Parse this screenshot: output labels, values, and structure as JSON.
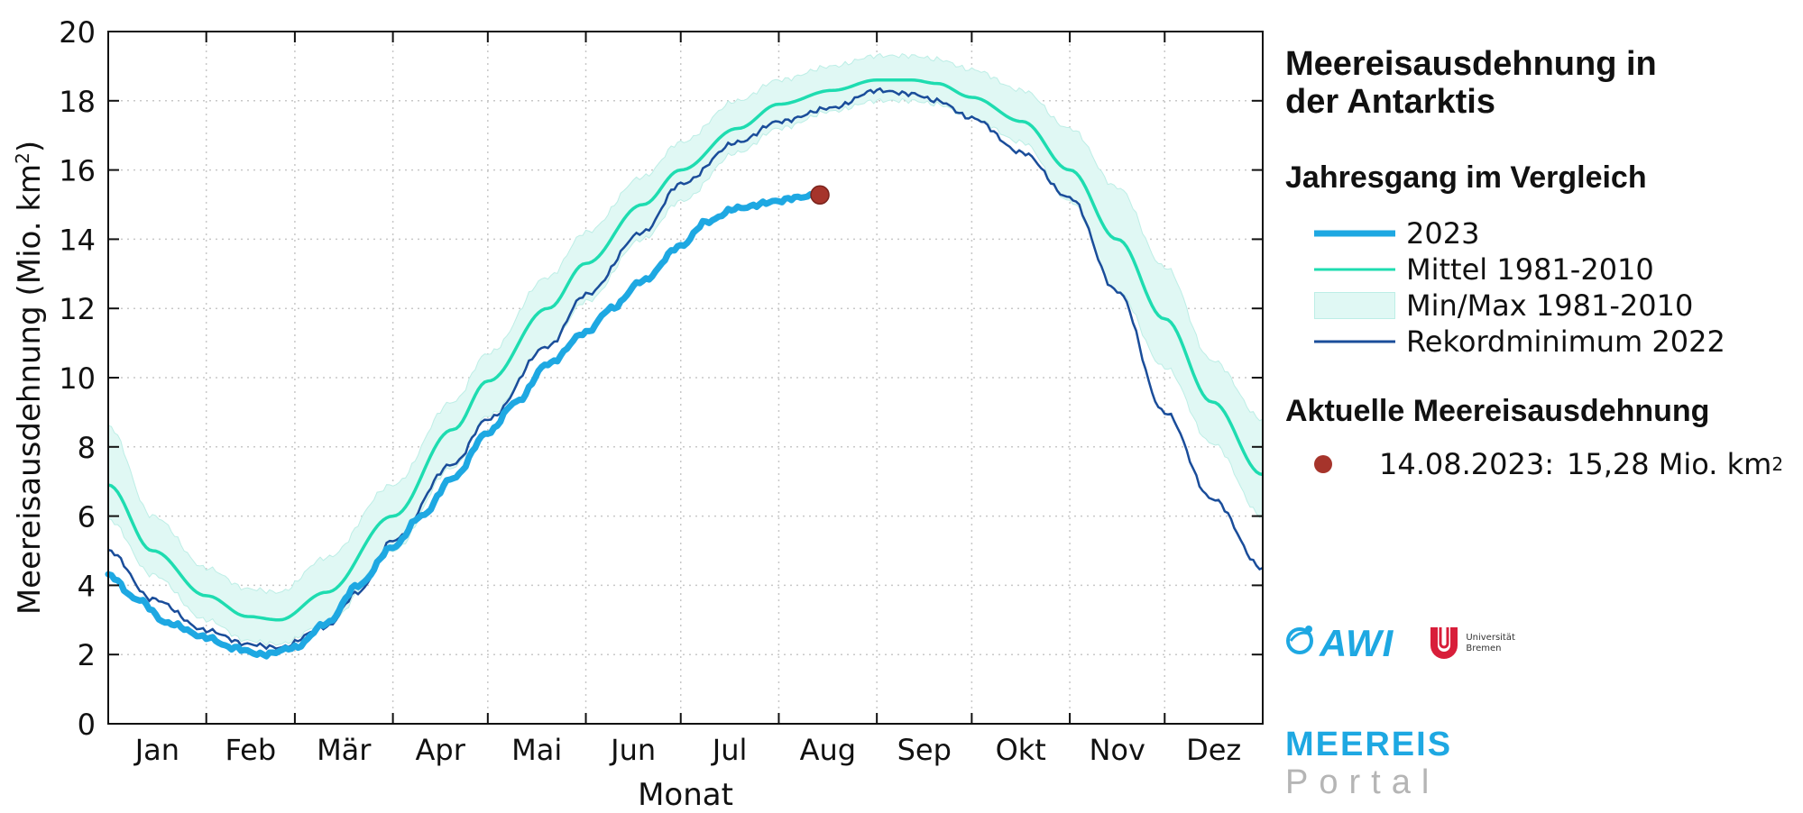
{
  "sidebar": {
    "title_line1": "Meereisausdehnung in",
    "title_line2": "der Antarktis",
    "legend_heading": "Jahresgang im Vergleich",
    "current_heading": "Aktuelle Meereisausdehnung",
    "current_date": "14.08.2023:",
    "current_value": "15,28 Mio. km",
    "current_value_sup": "2"
  },
  "logos": {
    "awi": "AWI",
    "uni_line1": "Universität",
    "uni_line2": "Bremen",
    "portal_line1": "MEEREIS",
    "portal_line2": "Portal"
  },
  "colors": {
    "y2023": "#1ea8e2",
    "mean": "#1edcb0",
    "band_fill": "#e0f8f4",
    "band_stroke": "#bdeee6",
    "record": "#1a4d9a",
    "current_point": "#a6342b"
  },
  "chart_data": {
    "type": "line",
    "xlabel": "Monat",
    "ylabel": "Meereisausdehnung (Mio. km",
    "ylabel_sup": "2",
    "ylabel_close": ")",
    "xlim": [
      1,
      366
    ],
    "ylim": [
      0,
      20
    ],
    "y_ticks": [
      0,
      2,
      4,
      6,
      8,
      10,
      12,
      14,
      16,
      18,
      20
    ],
    "month_labels": [
      "Jan",
      "Feb",
      "Mär",
      "Apr",
      "Mai",
      "Jun",
      "Jul",
      "Aug",
      "Sep",
      "Okt",
      "Nov",
      "Dez"
    ],
    "grid": true,
    "series": [
      {
        "name": "2023",
        "kind": "line",
        "x": [
          1,
          10,
          20,
          32,
          40,
          50,
          60,
          70,
          80,
          91,
          100,
          110,
          121,
          130,
          140,
          152,
          160,
          170,
          182,
          190,
          200,
          213,
          218,
          226
        ],
        "y": [
          4.3,
          3.6,
          2.9,
          2.5,
          2.2,
          2.0,
          2.2,
          2.9,
          4.0,
          5.1,
          6.0,
          7.1,
          8.4,
          9.3,
          10.4,
          11.3,
          12.0,
          12.8,
          13.8,
          14.5,
          14.9,
          15.1,
          15.2,
          15.28
        ]
      },
      {
        "name": "Mittel 1981-2010",
        "kind": "line",
        "x": [
          1,
          15,
          32,
          45,
          55,
          70,
          91,
          110,
          121,
          140,
          152,
          170,
          182,
          200,
          213,
          230,
          244,
          255,
          263,
          274,
          290,
          305,
          320,
          335,
          350,
          366
        ],
        "y": [
          6.9,
          5.0,
          3.7,
          3.1,
          3.0,
          3.8,
          6.0,
          8.5,
          9.9,
          12.0,
          13.3,
          15.0,
          16.0,
          17.2,
          17.9,
          18.3,
          18.6,
          18.6,
          18.5,
          18.1,
          17.4,
          16.0,
          14.0,
          11.7,
          9.3,
          7.2
        ]
      },
      {
        "name": "Min/Max 1981-2010",
        "kind": "band",
        "x": [
          1,
          15,
          32,
          45,
          55,
          70,
          91,
          110,
          121,
          140,
          152,
          170,
          182,
          200,
          213,
          230,
          244,
          255,
          263,
          274,
          290,
          305,
          320,
          335,
          350,
          366
        ],
        "min": [
          5.9,
          4.3,
          3.0,
          2.4,
          2.3,
          2.9,
          5.0,
          7.4,
          8.9,
          10.9,
          12.2,
          14.0,
          15.1,
          16.5,
          17.2,
          17.7,
          18.0,
          18.0,
          17.9,
          17.5,
          16.8,
          15.1,
          12.5,
          10.3,
          8.1,
          6.0
        ],
        "max": [
          8.6,
          6.0,
          4.5,
          3.9,
          3.8,
          4.8,
          6.9,
          9.3,
          10.7,
          12.9,
          14.2,
          15.8,
          16.8,
          18.0,
          18.6,
          19.0,
          19.3,
          19.3,
          19.2,
          18.9,
          18.3,
          17.2,
          15.5,
          13.2,
          10.5,
          8.8
        ]
      },
      {
        "name": "Rekordminimum 2022",
        "kind": "line",
        "x": [
          1,
          15,
          32,
          45,
          55,
          70,
          80,
          91,
          110,
          121,
          140,
          152,
          170,
          182,
          200,
          213,
          230,
          244,
          255,
          263,
          274,
          290,
          305,
          320,
          335,
          350,
          366
        ],
        "y": [
          5.0,
          3.6,
          2.7,
          2.3,
          2.2,
          2.8,
          3.8,
          5.3,
          7.5,
          8.8,
          10.9,
          12.4,
          14.2,
          15.6,
          16.8,
          17.4,
          17.8,
          18.3,
          18.2,
          18.0,
          17.5,
          16.5,
          15.2,
          12.5,
          9.0,
          6.5,
          4.5
        ]
      },
      {
        "name": "Aktuelle Meereisausdehnung",
        "kind": "point",
        "x": [
          226
        ],
        "y": [
          15.28
        ]
      }
    ]
  }
}
